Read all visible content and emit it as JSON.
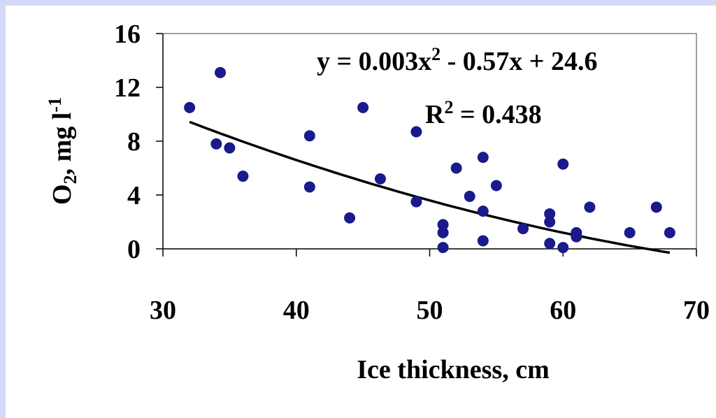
{
  "chart_data": {
    "type": "scatter",
    "xlabel": "Ice thickness, cm",
    "ylabel": {
      "base": "O",
      "sub": "2",
      "rest": ", mg l",
      "sup": "-1"
    },
    "xlim": [
      30,
      70
    ],
    "ylim": [
      0,
      16
    ],
    "x_ticks": [
      30,
      40,
      50,
      60,
      70
    ],
    "y_ticks": [
      0,
      4,
      8,
      12,
      16
    ],
    "grid": false,
    "legend": "none",
    "colors": {
      "points": "#1a1a8c",
      "trendline": "#000000",
      "background": "#d4d9f7"
    },
    "series": [
      {
        "points": [
          [
            32,
            10.5
          ],
          [
            34.3,
            13.1
          ],
          [
            34,
            7.8
          ],
          [
            35,
            7.5
          ],
          [
            36,
            5.4
          ],
          [
            41,
            8.4
          ],
          [
            41,
            4.6
          ],
          [
            44,
            2.3
          ],
          [
            45,
            10.5
          ],
          [
            46.3,
            5.2
          ],
          [
            49,
            8.7
          ],
          [
            49,
            3.5
          ],
          [
            51,
            1.8
          ],
          [
            51,
            1.2
          ],
          [
            51,
            0.1
          ],
          [
            52,
            6.0
          ],
          [
            53,
            3.9
          ],
          [
            54,
            6.8
          ],
          [
            54,
            2.8
          ],
          [
            54,
            0.6
          ],
          [
            55,
            4.7
          ],
          [
            57,
            1.5
          ],
          [
            59,
            2.6
          ],
          [
            59,
            2.0
          ],
          [
            59,
            0.4
          ],
          [
            60,
            6.3
          ],
          [
            60,
            0.1
          ],
          [
            61,
            1.2
          ],
          [
            61,
            0.9
          ],
          [
            62,
            3.1
          ],
          [
            65,
            1.2
          ],
          [
            67,
            3.1
          ],
          [
            68,
            1.2
          ]
        ]
      }
    ],
    "trendline": {
      "type": "polynomial",
      "equation": {
        "lhs": "y = 0.003x",
        "exp": "2",
        "rhs": " - 0.57x + 24.6"
      },
      "r2": {
        "lhs": "R",
        "exp": "2",
        "rhs": " = 0.438"
      },
      "x_range": [
        32,
        68
      ]
    }
  }
}
